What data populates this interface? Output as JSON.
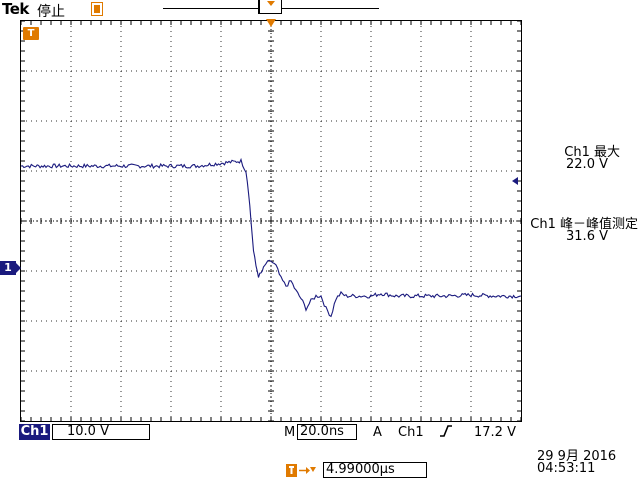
{
  "header": {
    "brand": "Tek",
    "run_state": "停止"
  },
  "measurements": [
    {
      "label": "Ch1 最大",
      "value": "22.0 V"
    },
    {
      "label": "Ch1 峰－峰值测定",
      "value": "31.6 V"
    }
  ],
  "status": {
    "channel": "Ch1",
    "channel_scale": "10.0 V",
    "timebase_prefix": "M",
    "timebase": "20.0ns",
    "trigger_mode": "A",
    "trigger_source": "Ch1",
    "trigger_edge_icon": "rising-edge-icon",
    "trigger_level": "17.2 V",
    "horizontal_position": "4.99000µs",
    "date": "29 9月  2016",
    "time": "04:53:11"
  },
  "markers": {
    "ground_marker_label": "1",
    "trigger_marker_label": "T"
  },
  "colors": {
    "trace": "#1a1a7e",
    "trigger_orange": "#e07a00",
    "grid": "#000000"
  },
  "chart_data": {
    "type": "line",
    "xlabel": "",
    "ylabel": "",
    "x_divisions": 10,
    "y_divisions": 8,
    "x_per_division": "20.0ns",
    "y_per_division": "10.0 V",
    "xlim": [
      -5,
      5
    ],
    "ylim": [
      -4,
      4
    ],
    "series": [
      {
        "x": [
          -5.0,
          -4.5,
          -4.0,
          -3.5,
          -3.0,
          -2.5,
          -2.0,
          -1.5,
          -0.6,
          -0.5,
          -0.45,
          -0.4,
          -0.35,
          -0.3,
          -0.25,
          -0.2,
          -0.15,
          -0.1,
          0.0,
          0.1,
          0.2,
          0.3,
          0.4,
          0.5,
          0.6,
          0.7,
          0.8,
          0.9,
          1.0,
          1.1,
          1.2,
          1.3,
          1.4,
          1.5,
          1.6,
          1.7,
          1.8,
          1.9,
          2.0,
          2.2,
          2.5,
          3.0,
          3.5,
          4.0,
          4.5,
          5.0
        ],
        "y": [
          1.1,
          1.1,
          1.1,
          1.1,
          1.1,
          1.1,
          1.1,
          1.1,
          1.2,
          1.0,
          0.6,
          0.0,
          -0.6,
          -0.9,
          -1.1,
          -1.05,
          -0.95,
          -0.85,
          -0.8,
          -0.9,
          -1.15,
          -1.3,
          -1.2,
          -1.4,
          -1.55,
          -1.75,
          -1.6,
          -1.5,
          -1.5,
          -1.75,
          -1.9,
          -1.55,
          -1.45,
          -1.5,
          -1.5,
          -1.5,
          -1.5,
          -1.5,
          -1.5,
          -1.45,
          -1.5,
          -1.5,
          -1.5,
          -1.48,
          -1.5,
          -1.5
        ]
      }
    ]
  }
}
